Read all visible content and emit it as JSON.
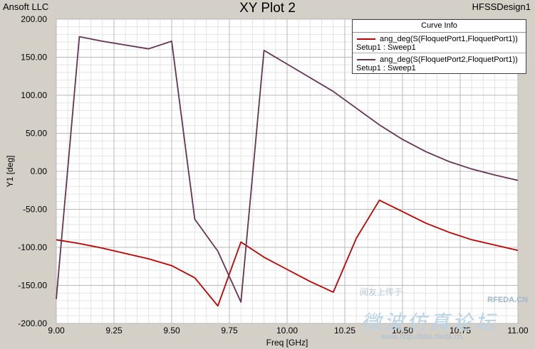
{
  "header": {
    "company": "Ansoft LLC",
    "title": "XY Plot 2",
    "design": "HFSSDesign1"
  },
  "legend": {
    "title": "Curve Info"
  },
  "watermark": {
    "top": "阅友上传于",
    "site": "RFEDA.CN",
    "big": "微波仿真论坛",
    "url": "www.http://bbs.rfeda.cn"
  },
  "chart_data": {
    "type": "line",
    "xlabel": "Freq [GHz]",
    "ylabel": "Y1 [deg]",
    "xlim": [
      9.0,
      11.0
    ],
    "ylim": [
      -200,
      200
    ],
    "x_ticks": [
      "9.00",
      "9.25",
      "9.50",
      "9.75",
      "10.00",
      "10.25",
      "10.50",
      "10.75",
      "11.00"
    ],
    "y_ticks": [
      "200.00",
      "150.00",
      "100.00",
      "50.00",
      "0.00",
      "-50.00",
      "-100.00",
      "-150.00",
      "-200.00"
    ],
    "grid": true,
    "legend_position": "top-right",
    "series": [
      {
        "name": "ang_deg(S(FloquetPort1,FloquetPort1))",
        "setup": "Setup1 : Sweep1",
        "color": "#c00000",
        "x": [
          9.0,
          9.1,
          9.2,
          9.3,
          9.4,
          9.5,
          9.6,
          9.7,
          9.8,
          9.9,
          10.0,
          10.1,
          10.2,
          10.3,
          10.4,
          10.5,
          10.6,
          10.7,
          10.8,
          10.9,
          11.0
        ],
        "y": [
          -90,
          -95,
          -101,
          -108,
          -115,
          -124,
          -140,
          -177,
          -93,
          -113,
          -129,
          -145,
          -159,
          -88,
          -38,
          -53,
          -68,
          -80,
          -90,
          -97,
          -104
        ]
      },
      {
        "name": "ang_deg(S(FloquetPort2,FloquetPort1))",
        "setup": "Setup1 : Sweep1",
        "color": "#663355",
        "x": [
          9.0,
          9.1,
          9.2,
          9.3,
          9.4,
          9.5,
          9.6,
          9.7,
          9.8,
          9.9,
          10.0,
          10.1,
          10.2,
          10.3,
          10.4,
          10.5,
          10.6,
          10.7,
          10.8,
          10.9,
          11.0
        ],
        "y": [
          -168,
          177,
          171,
          166,
          161,
          171,
          -63,
          -105,
          -172,
          159,
          141,
          123,
          105,
          83,
          61,
          42,
          26,
          13,
          3,
          -5,
          -12
        ]
      }
    ]
  }
}
